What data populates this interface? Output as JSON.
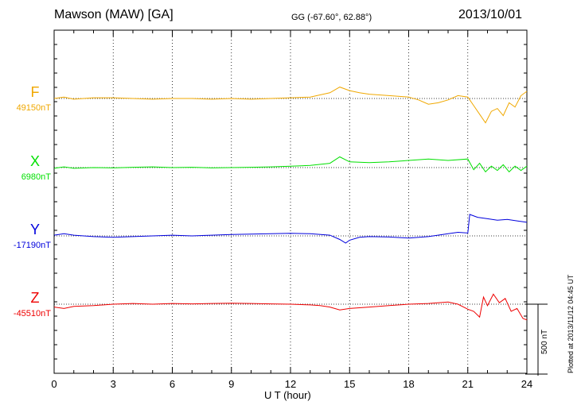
{
  "header": {
    "station": "Mawson (MAW)  [GA]",
    "coords": "GG (-67.60°,  62.88°)",
    "date": "2013/10/01"
  },
  "footer": {
    "plotted": "Plotted at 2013/11/12 04:45 UT"
  },
  "scale": {
    "label": "500 nT",
    "value_nT": 500
  },
  "colors": {
    "F": "#f0a800",
    "X": "#00e000",
    "Y": "#0000dd",
    "Z": "#ee0000",
    "axis": "#000000"
  },
  "chart_data": {
    "type": "line",
    "title": "Mawson (MAW)  [GA]",
    "xlabel": "U T (hour)",
    "xlim": [
      0,
      24
    ],
    "xticks": [
      0,
      3,
      6,
      9,
      12,
      15,
      18,
      21,
      24
    ],
    "xtick_labels": [
      "0",
      "3",
      "6",
      "9",
      "12",
      "15",
      "18",
      "21",
      "24"
    ],
    "grid": "vertical dotted every 3 h; dotted baseline per component",
    "series": [
      {
        "name": "F",
        "baseline_label": "49150nT",
        "baseline": 49150,
        "x": [
          0,
          0.5,
          1,
          1.5,
          2,
          3,
          4,
          5,
          6,
          7,
          8,
          9,
          10,
          11,
          12,
          13,
          13.5,
          14,
          14.5,
          15,
          15.5,
          16,
          17,
          18,
          18.5,
          19,
          19.5,
          20,
          20.5,
          21,
          21.3,
          21.6,
          21.9,
          22.2,
          22.5,
          22.8,
          23.1,
          23.4,
          23.7,
          24
        ],
        "y": [
          49150,
          49160,
          49145,
          49150,
          49155,
          49155,
          49150,
          49145,
          49150,
          49150,
          49145,
          49150,
          49145,
          49150,
          49155,
          49160,
          49175,
          49190,
          49230,
          49205,
          49190,
          49180,
          49170,
          49160,
          49140,
          49110,
          49120,
          49140,
          49170,
          49160,
          49100,
          49040,
          48980,
          49060,
          49080,
          49030,
          49120,
          49090,
          49170,
          49200
        ]
      },
      {
        "name": "X",
        "baseline_label": "6980nT",
        "baseline": 6980,
        "x": [
          0,
          0.5,
          1,
          2,
          3,
          4,
          5,
          6,
          7,
          8,
          9,
          10,
          11,
          12,
          13,
          14,
          14.5,
          15,
          16,
          17,
          18,
          19,
          20,
          21,
          21.3,
          21.6,
          21.9,
          22.2,
          22.5,
          22.8,
          23.1,
          23.4,
          23.7,
          24
        ],
        "y": [
          6975,
          6985,
          6975,
          6980,
          6978,
          6982,
          6985,
          6980,
          6982,
          6978,
          6980,
          6982,
          6985,
          6990,
          6995,
          7010,
          7055,
          7020,
          7015,
          7020,
          7030,
          7040,
          7030,
          7040,
          6965,
          7010,
          6950,
          6990,
          6960,
          7000,
          6950,
          6990,
          6960,
          6990
        ]
      },
      {
        "name": "Y",
        "baseline_label": "-17190nT",
        "baseline": -17190,
        "x": [
          0,
          0.5,
          1,
          2,
          3,
          4,
          5,
          6,
          7,
          8,
          9,
          10,
          11,
          12,
          13,
          14,
          14.5,
          14.8,
          15,
          15.5,
          16,
          17,
          18,
          19,
          20,
          20.5,
          21,
          21.1,
          21.5,
          22,
          22.5,
          23,
          23.5,
          24
        ],
        "y": [
          -17185,
          -17175,
          -17185,
          -17195,
          -17200,
          -17195,
          -17190,
          -17185,
          -17190,
          -17185,
          -17180,
          -17178,
          -17175,
          -17172,
          -17175,
          -17185,
          -17215,
          -17240,
          -17220,
          -17200,
          -17195,
          -17198,
          -17205,
          -17195,
          -17175,
          -17165,
          -17170,
          -17040,
          -17060,
          -17070,
          -17080,
          -17075,
          -17085,
          -17095
        ]
      },
      {
        "name": "Z",
        "baseline_label": "-45510nT",
        "baseline": -45510,
        "x": [
          0,
          0.5,
          1,
          2,
          3,
          4,
          5,
          6,
          7,
          8,
          9,
          10,
          11,
          12,
          13,
          13.5,
          14,
          14.5,
          15,
          16,
          17,
          18,
          19,
          20,
          20.5,
          21,
          21.3,
          21.6,
          21.8,
          22,
          22.3,
          22.6,
          22.9,
          23.2,
          23.5,
          23.8,
          24
        ],
        "y": [
          -45530,
          -45540,
          -45525,
          -45520,
          -45510,
          -45505,
          -45510,
          -45505,
          -45508,
          -45505,
          -45503,
          -45505,
          -45508,
          -45510,
          -45515,
          -45520,
          -45530,
          -45550,
          -45540,
          -45530,
          -45520,
          -45510,
          -45505,
          -45495,
          -45510,
          -45545,
          -45560,
          -45600,
          -45460,
          -45520,
          -45440,
          -45500,
          -45470,
          -45560,
          -45540,
          -45610,
          -45620
        ]
      }
    ]
  }
}
